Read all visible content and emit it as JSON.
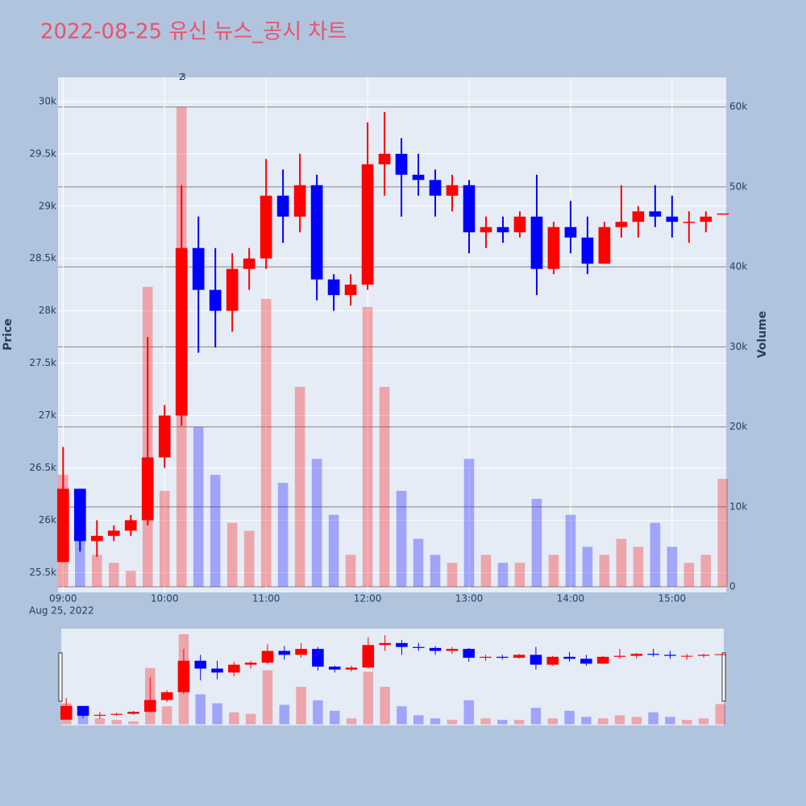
{
  "chart_data": {
    "type": "candlestick",
    "title": "2022-08-25 유신 뉴스_공시 차트",
    "y_title": "Price",
    "y2_title": "Volume",
    "x": [
      "2022-08-25 09:00",
      "2022-08-25 09:10",
      "2022-08-25 09:20",
      "2022-08-25 09:30",
      "2022-08-25 09:40",
      "2022-08-25 09:50",
      "2022-08-25 10:00",
      "2022-08-25 10:10",
      "2022-08-25 10:20",
      "2022-08-25 10:30",
      "2022-08-25 10:40",
      "2022-08-25 10:50",
      "2022-08-25 11:00",
      "2022-08-25 11:10",
      "2022-08-25 11:20",
      "2022-08-25 11:30",
      "2022-08-25 11:40",
      "2022-08-25 11:50",
      "2022-08-25 12:00",
      "2022-08-25 12:10",
      "2022-08-25 12:20",
      "2022-08-25 12:30",
      "2022-08-25 12:40",
      "2022-08-25 12:50",
      "2022-08-25 13:00",
      "2022-08-25 13:10",
      "2022-08-25 13:20",
      "2022-08-25 13:30",
      "2022-08-25 13:40",
      "2022-08-25 13:50",
      "2022-08-25 14:00",
      "2022-08-25 14:10",
      "2022-08-25 14:20",
      "2022-08-25 14:30",
      "2022-08-25 14:40",
      "2022-08-25 14:50",
      "2022-08-25 15:00",
      "2022-08-25 15:10",
      "2022-08-25 15:20",
      "2022-08-25 15:30"
    ],
    "open": [
      25600,
      26300,
      25800,
      25850,
      25900,
      26000,
      26600,
      27000,
      28600,
      28200,
      28000,
      28400,
      28500,
      29100,
      28900,
      29200,
      28300,
      28150,
      28250,
      29400,
      29500,
      29300,
      29250,
      29100,
      29200,
      28750,
      28800,
      28750,
      28900,
      28400,
      28800,
      28700,
      28450,
      28800,
      28850,
      28950,
      28900,
      28850,
      28850,
      28930
    ],
    "high": [
      26700,
      26300,
      26000,
      25950,
      26050,
      27750,
      27100,
      29200,
      28900,
      28600,
      28550,
      28600,
      29450,
      29350,
      29500,
      29300,
      28350,
      28350,
      29800,
      29900,
      29650,
      29500,
      29350,
      29300,
      29250,
      28900,
      28900,
      28950,
      29300,
      28850,
      29050,
      28900,
      28850,
      29200,
      29000,
      29200,
      29100,
      28950,
      28950,
      28930
    ],
    "low": [
      25600,
      25700,
      25650,
      25800,
      25850,
      25950,
      26500,
      26900,
      27600,
      27650,
      27800,
      28200,
      28400,
      28650,
      28750,
      28100,
      28000,
      28050,
      28200,
      29100,
      28900,
      29100,
      28900,
      28950,
      28550,
      28600,
      28650,
      28700,
      28150,
      28350,
      28550,
      28350,
      28450,
      28700,
      28700,
      28800,
      28700,
      28650,
      28750,
      28930
    ],
    "close": [
      26300,
      25800,
      25850,
      25900,
      26000,
      26600,
      27000,
      28600,
      28200,
      28000,
      28400,
      28500,
      29100,
      28900,
      29200,
      28300,
      28150,
      28250,
      29400,
      29500,
      29300,
      29250,
      29100,
      29200,
      28750,
      28800,
      28750,
      28900,
      28400,
      28800,
      28700,
      28450,
      28800,
      28850,
      28950,
      28900,
      28850,
      28850,
      28900,
      28930
    ],
    "volume": [
      14000,
      8000,
      4000,
      3000,
      2000,
      37500,
      12000,
      60000,
      20000,
      14000,
      8000,
      7000,
      36000,
      13000,
      25000,
      16000,
      9000,
      4000,
      35000,
      25000,
      12000,
      6000,
      4000,
      3000,
      16000,
      4000,
      3000,
      3000,
      11000,
      4000,
      9000,
      5000,
      4000,
      6000,
      5000,
      8000,
      5000,
      3000,
      4000,
      13500
    ],
    "increasing_color": "#ff0000",
    "decreasing_color": "#0000ff",
    "xlim": [
      "2022-08-25 08:57",
      "2022-08-25 15:32"
    ],
    "xticks": [
      {
        "value": "2022-08-25 09:00",
        "label": "09:00"
      },
      {
        "value": "2022-08-25 10:00",
        "label": "10:00"
      },
      {
        "value": "2022-08-25 11:00",
        "label": "11:00"
      },
      {
        "value": "2022-08-25 12:00",
        "label": "12:00"
      },
      {
        "value": "2022-08-25 13:00",
        "label": "13:00"
      },
      {
        "value": "2022-08-25 14:00",
        "label": "14:00"
      },
      {
        "value": "2022-08-25 15:00",
        "label": "15:00"
      }
    ],
    "x_date_label": "Aug 25, 2022",
    "ylim": [
      25310,
      30230
    ],
    "yticks": [
      {
        "value": 25500,
        "label": "25.5k"
      },
      {
        "value": 26000,
        "label": "26k"
      },
      {
        "value": 26500,
        "label": "26.5k"
      },
      {
        "value": 27000,
        "label": "27k"
      },
      {
        "value": 27500,
        "label": "27.5k"
      },
      {
        "value": 28000,
        "label": "28k"
      },
      {
        "value": 28500,
        "label": "28.5k"
      },
      {
        "value": 29000,
        "label": "29k"
      },
      {
        "value": 29500,
        "label": "29.5k"
      },
      {
        "value": 30000,
        "label": "30k"
      }
    ],
    "y2lim": [
      -700,
      63700
    ],
    "y2ticks": [
      0,
      {
        "value": 10000,
        "label": "10k"
      },
      {
        "value": 20000,
        "label": "20k"
      },
      {
        "value": 30000,
        "label": "30k"
      },
      {
        "value": 40000,
        "label": "40k"
      },
      {
        "value": 50000,
        "label": "50k"
      },
      {
        "value": 60000,
        "label": "60k"
      }
    ],
    "annotations": [
      {
        "text": "2",
        "x": "2022-08-25 10:10"
      },
      {
        "text": "3",
        "x": "2022-08-25 10:11"
      }
    ],
    "rangeslider": true
  }
}
